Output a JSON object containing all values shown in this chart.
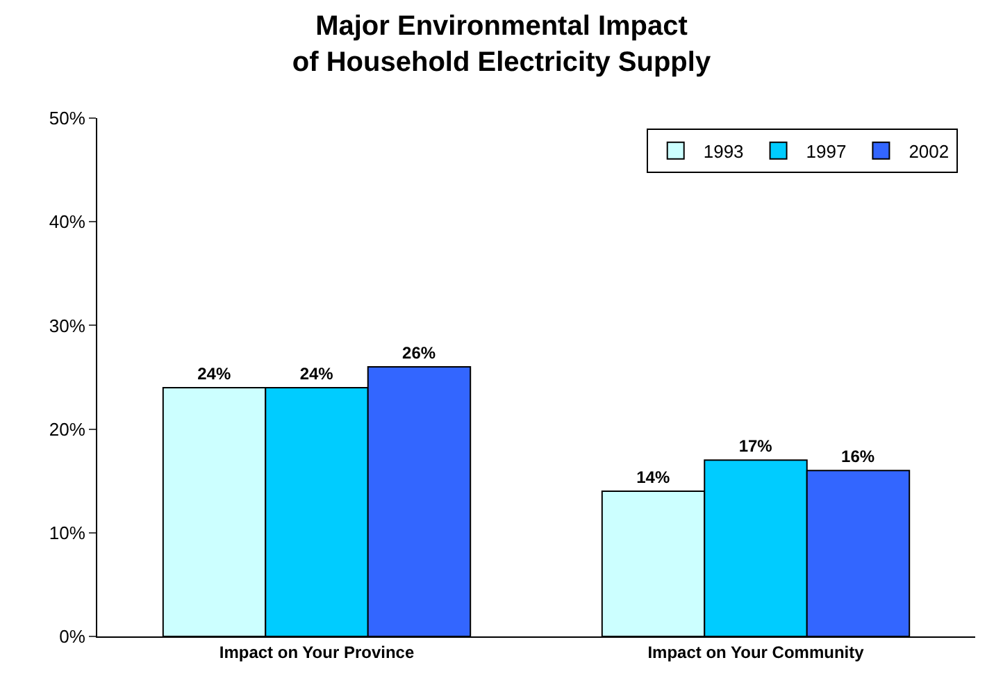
{
  "chart_data": {
    "type": "bar",
    "title": "Major Environmental Impact\nof Household Electricity Supply",
    "categories": [
      "Impact on Your Province",
      "Impact on Your Community"
    ],
    "series": [
      {
        "name": "1993",
        "color": "#ccffff",
        "values": [
          24,
          14
        ],
        "value_labels": [
          "24%",
          "14%"
        ]
      },
      {
        "name": "1997",
        "color": "#00ccff",
        "values": [
          24,
          17
        ],
        "value_labels": [
          "24%",
          "17%"
        ]
      },
      {
        "name": "2002",
        "color": "#3366ff",
        "values": [
          26,
          16
        ],
        "value_labels": [
          "26%",
          "16%"
        ]
      }
    ],
    "ylim": [
      0,
      50
    ],
    "yticks": [
      {
        "value": 0,
        "label": "0%"
      },
      {
        "value": 10,
        "label": "10%"
      },
      {
        "value": 20,
        "label": "20%"
      },
      {
        "value": 30,
        "label": "30%"
      },
      {
        "value": 40,
        "label": "40%"
      },
      {
        "value": 50,
        "label": "50%"
      }
    ],
    "legend": "top right"
  }
}
